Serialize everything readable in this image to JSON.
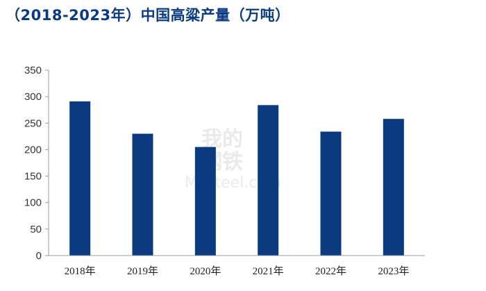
{
  "chart_data": {
    "type": "bar",
    "title": "（2018-2023年）中国高粱产量（万吨）",
    "categories": [
      "2018年",
      "2019年",
      "2020年",
      "2021年",
      "2022年",
      "2023年"
    ],
    "values": [
      291,
      230,
      205,
      284,
      234,
      258
    ],
    "xlabel": "",
    "ylabel": "",
    "ylim": [
      0,
      350
    ],
    "yticks": [
      0,
      50,
      100,
      150,
      200,
      250,
      300,
      350
    ],
    "grid": false,
    "legend": "none",
    "bar_color": "#0a3a80"
  },
  "watermark": {
    "top": "我的",
    "bottom": "钢铁",
    "latin": "Mysteel.com"
  }
}
